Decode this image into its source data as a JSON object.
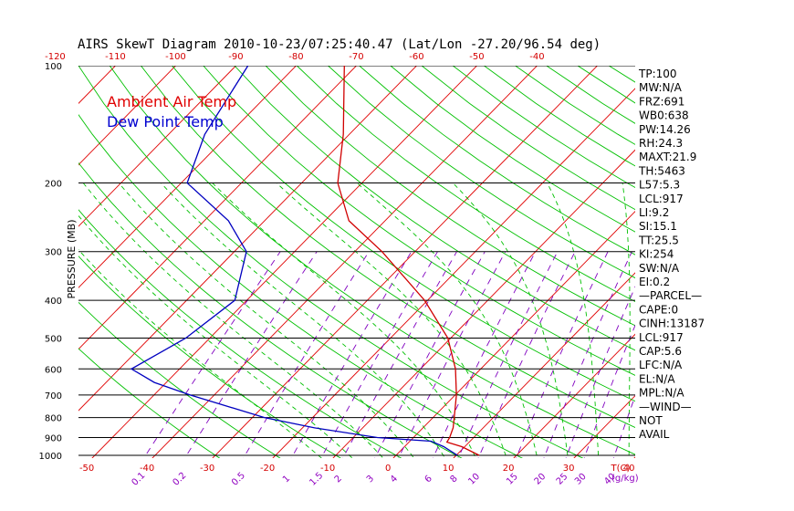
{
  "chart_data": {
    "type": "skew-t",
    "title": "AIRS SkewT Diagram 2010-10-23/07:25:40.47 (Lat/Lon -27.20/96.54 deg)",
    "ylabel": "PRESSURE (MB)",
    "pressure_ticks": [
      "100",
      "200",
      "300",
      "400",
      "500",
      "600",
      "700",
      "800",
      "900",
      "1000"
    ],
    "pressure_levels": [
      100,
      200,
      300,
      400,
      500,
      600,
      700,
      800,
      900,
      1000
    ],
    "temp_ticks_top": [
      "-120",
      "-110",
      "-100",
      "-90",
      "-80",
      "-70",
      "-60",
      "-50",
      "-40"
    ],
    "temp_ticks_bottom": [
      "-50",
      "-40",
      "-30",
      "-20",
      "-10",
      "0",
      "10",
      "20",
      "30",
      "40"
    ],
    "temp_unit_label": "T(C)",
    "mixing_ratio_labels": [
      "0.1",
      "0.2",
      "0.5",
      "1",
      "1.5",
      "2",
      "3",
      "4",
      "6",
      "8",
      "10",
      "15",
      "20",
      "25",
      "30",
      "40"
    ],
    "mixing_ratio_unit": "g/kg",
    "legend": [
      {
        "name": "Ambient Air Temp",
        "color": "#e00000"
      },
      {
        "name": "Dew Point Temp",
        "color": "#0000d0"
      }
    ],
    "series": [
      {
        "name": "Ambient Air Temp",
        "color": "#d00000",
        "points": [
          [
            1000,
            13.8
          ],
          [
            950,
            9.5
          ],
          [
            925,
            6.3
          ],
          [
            900,
            6.0
          ],
          [
            850,
            5.0
          ],
          [
            800,
            3.5
          ],
          [
            700,
            0.2
          ],
          [
            600,
            -4.2
          ],
          [
            500,
            -10.5
          ],
          [
            400,
            -20.5
          ],
          [
            300,
            -35.5
          ],
          [
            250,
            -46
          ],
          [
            200,
            -54
          ],
          [
            150,
            -61
          ],
          [
            100,
            -72
          ]
        ]
      },
      {
        "name": "Dew Point Temp",
        "color": "#0000c0",
        "points": [
          [
            1000,
            10.2
          ],
          [
            950,
            6.5
          ],
          [
            920,
            3.5
          ],
          [
            900,
            -6
          ],
          [
            850,
            -18
          ],
          [
            800,
            -28
          ],
          [
            700,
            -44
          ],
          [
            650,
            -52
          ],
          [
            600,
            -58
          ],
          [
            500,
            -54
          ],
          [
            400,
            -52
          ],
          [
            300,
            -58
          ],
          [
            250,
            -66
          ],
          [
            200,
            -79
          ],
          [
            150,
            -84
          ],
          [
            100,
            -88
          ]
        ]
      }
    ]
  },
  "indices": [
    "TP:100",
    "MW:N/A",
    "FRZ:691",
    "WB0:638",
    "PW:14.26",
    "RH:24.3",
    "MAXT:21.9",
    "TH:5463",
    "L57:5.3",
    "LCL:917",
    "LI:9.2",
    "SI:15.1",
    "TT:25.5",
    "KI:254",
    "SW:N/A",
    "EI:0.2",
    "—PARCEL—",
    "CAPE:0",
    "CINH:13187",
    "LCL:917",
    "CAP:5.6",
    "LFC:N/A",
    "EL:N/A",
    "MPL:N/A",
    "—WIND—",
    "NOT",
    "AVAIL"
  ],
  "colors": {
    "isotherm": "#e00000",
    "dry_adiabat": "#00c000",
    "moist_adiabat": "#00c000",
    "mixing_ratio": "#8000c0",
    "isobar": "#000000"
  }
}
